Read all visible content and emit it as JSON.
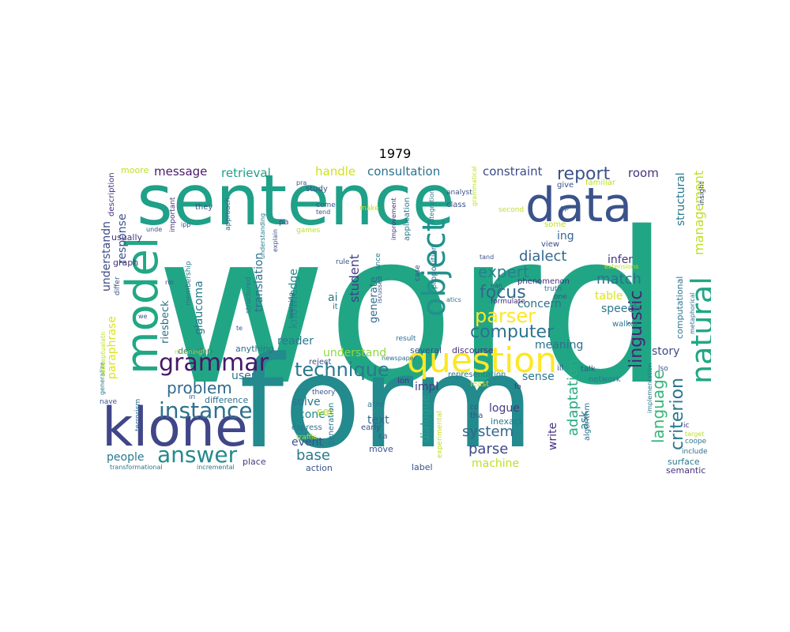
{
  "title": "1979",
  "words": [
    {
      "text": "word",
      "color": "#21a685"
    },
    {
      "text": "form",
      "color": "#238a8d"
    },
    {
      "text": "sentence",
      "color": "#1fa088"
    },
    {
      "text": "data",
      "color": "#3b528b"
    },
    {
      "text": "klone",
      "color": "#404688"
    },
    {
      "text": "model",
      "color": "#22a785"
    },
    {
      "text": "question",
      "color": "#fde725"
    },
    {
      "text": "object",
      "color": "#21918c"
    },
    {
      "text": "natural",
      "color": "#21a685"
    },
    {
      "text": "grammar",
      "color": "#481769"
    },
    {
      "text": "instance",
      "color": "#2c728e"
    },
    {
      "text": "answer",
      "color": "#238a8d"
    },
    {
      "text": "technique",
      "color": "#29798e"
    },
    {
      "text": "parser",
      "color": "#fde725"
    },
    {
      "text": "problem",
      "color": "#306a8e"
    },
    {
      "text": "focus",
      "color": "#31688e"
    },
    {
      "text": "computer",
      "color": "#2c738e"
    },
    {
      "text": "report",
      "color": "#3b528b"
    },
    {
      "text": "linguistic",
      "color": "#482475"
    },
    {
      "text": "language",
      "color": "#35b779"
    },
    {
      "text": "adaptation",
      "color": "#26ad81"
    },
    {
      "text": "criterion",
      "color": "#2a788e"
    },
    {
      "text": "management",
      "color": "#bddf26"
    },
    {
      "text": "expert",
      "color": "#26828e"
    },
    {
      "text": "dialect",
      "color": "#31688e"
    },
    {
      "text": "match",
      "color": "#2c728e"
    },
    {
      "text": "system",
      "color": "#31688e"
    },
    {
      "text": "parse",
      "color": "#3e4a89"
    },
    {
      "text": "student",
      "color": "#433e85"
    },
    {
      "text": "base",
      "color": "#2a788e"
    },
    {
      "text": "consultation",
      "color": "#2c728e"
    },
    {
      "text": "constraint",
      "color": "#3e4a89"
    },
    {
      "text": "message",
      "color": "#481a6c"
    },
    {
      "text": "retrieval",
      "color": "#1f9e89"
    },
    {
      "text": "handle",
      "color": "#d0e11c"
    },
    {
      "text": "room",
      "color": "#46327e"
    },
    {
      "text": "understand",
      "color": "#8fd744"
    },
    {
      "text": "dialogue",
      "color": "#1f9f88"
    },
    {
      "text": "logue",
      "color": "#443a83"
    },
    {
      "text": "translation",
      "color": "#2d708e"
    },
    {
      "text": "knowledge",
      "color": "#23898e"
    },
    {
      "text": "glaucoma",
      "color": "#2a788e"
    },
    {
      "text": "riesbeck",
      "color": "#2d708e"
    },
    {
      "text": "paraphrase",
      "color": "#dde318"
    },
    {
      "text": "response",
      "color": "#3b528b"
    },
    {
      "text": "understandn",
      "color": "#3e4a89"
    },
    {
      "text": "people",
      "color": "#29798e"
    },
    {
      "text": "text",
      "color": "#31688e"
    },
    {
      "text": "event",
      "color": "#3b528b"
    },
    {
      "text": "cone",
      "color": "#228c8d"
    },
    {
      "text": "set",
      "color": "#b5de2b"
    },
    {
      "text": "solve",
      "color": "#2a788e"
    },
    {
      "text": "impl",
      "color": "#443a83"
    },
    {
      "text": "machine",
      "color": "#bddf26"
    },
    {
      "text": "write",
      "color": "#472f7d"
    },
    {
      "text": "ask",
      "color": "#2a788e"
    },
    {
      "text": "sense",
      "color": "#2a788e"
    },
    {
      "text": "meaning",
      "color": "#2d708e"
    },
    {
      "text": "concern",
      "color": "#2d708e"
    },
    {
      "text": "table",
      "color": "#dde318"
    },
    {
      "text": "speech",
      "color": "#2a788e"
    },
    {
      "text": "infer",
      "color": "#453581"
    },
    {
      "text": "story",
      "color": "#3e4a89"
    },
    {
      "text": "structural",
      "color": "#2a788e"
    },
    {
      "text": "computational",
      "color": "#2c728e"
    },
    {
      "text": "reader",
      "color": "#2a788e"
    },
    {
      "text": "user",
      "color": "#29798e"
    },
    {
      "text": "ai",
      "color": "#2a788e"
    },
    {
      "text": "generate",
      "color": "#31688e"
    },
    {
      "text": "ing",
      "color": "#31688e"
    },
    {
      "text": "several",
      "color": "#3b528b"
    },
    {
      "text": "discourse",
      "color": "#472f7d"
    },
    {
      "text": "usually",
      "color": "#46327e"
    },
    {
      "text": "graph",
      "color": "#46327e"
    },
    {
      "text": "moore",
      "color": "#bddf26"
    },
    {
      "text": "description",
      "color": "#46327e"
    },
    {
      "text": "develop",
      "color": "#2a788e"
    },
    {
      "text": "anything",
      "color": "#2d708e"
    },
    {
      "text": "difference",
      "color": "#2d708e"
    },
    {
      "text": "place",
      "color": "#443a83"
    },
    {
      "text": "action",
      "color": "#3b528b"
    },
    {
      "text": "move",
      "color": "#3b528b"
    },
    {
      "text": "label",
      "color": "#3b528b"
    },
    {
      "text": "surface",
      "color": "#2a788e"
    },
    {
      "text": "semantic",
      "color": "#46327e"
    },
    {
      "text": "network",
      "color": "#2a788e"
    },
    {
      "text": "algorithm",
      "color": "#2c728e"
    },
    {
      "text": "talk",
      "color": "#3b528b"
    },
    {
      "text": "walker",
      "color": "#2a788e"
    },
    {
      "text": "include",
      "color": "#2d708e"
    },
    {
      "text": "coope",
      "color": "#2a788e"
    },
    {
      "text": "target",
      "color": "#bddf26"
    },
    {
      "text": "ic",
      "color": "#46327e"
    },
    {
      "text": "lso",
      "color": "#3b528b"
    },
    {
      "text": "insight",
      "color": "#3e4a89"
    },
    {
      "text": "metaphorical",
      "color": "#2d708e"
    },
    {
      "text": "give",
      "color": "#3b528b"
    },
    {
      "text": "familiar",
      "color": "#bddf26"
    },
    {
      "text": "second",
      "color": "#bddf26"
    },
    {
      "text": "some",
      "color": "#bddf26"
    },
    {
      "text": "view",
      "color": "#3e4a89"
    },
    {
      "text": "op",
      "color": "#2d708e"
    },
    {
      "text": "one",
      "color": "#3b528b"
    },
    {
      "text": "truth",
      "color": "#2d708e"
    },
    {
      "text": "phenomenon",
      "color": "#472f7d"
    },
    {
      "text": "formulate",
      "color": "#472f7d"
    },
    {
      "text": "nan",
      "color": "#3b528b"
    },
    {
      "text": "tand",
      "color": "#3b528b"
    },
    {
      "text": "extensions",
      "color": "#bddf26"
    },
    {
      "text": "proposition",
      "color": "#2a788e"
    },
    {
      "text": "application",
      "color": "#2a788e"
    },
    {
      "text": "improvement",
      "color": "#472f7d"
    },
    {
      "text": "integration",
      "color": "#2a788e"
    },
    {
      "text": "grammatical",
      "color": "#bddf26"
    },
    {
      "text": "class",
      "color": "#3b528b"
    },
    {
      "text": "analyst",
      "color": "#3b528b"
    },
    {
      "text": "case",
      "color": "#3e4a89"
    },
    {
      "text": "result",
      "color": "#2d708e"
    },
    {
      "text": "iscussed",
      "color": "#3b528b"
    },
    {
      "text": "ance",
      "color": "#2a788e"
    },
    {
      "text": "rule",
      "color": "#3b528b"
    },
    {
      "text": "it",
      "color": "#2a788e"
    },
    {
      "text": "newspaper",
      "color": "#2d708e"
    },
    {
      "text": "representation",
      "color": "#2a788e"
    },
    {
      "text": "least",
      "color": "#bddf26"
    },
    {
      "text": "tha",
      "color": "#3b528b"
    },
    {
      "text": "co",
      "color": "#3b528b"
    },
    {
      "text": "fo",
      "color": "#46327e"
    },
    {
      "text": "implementation",
      "color": "#2a788e"
    },
    {
      "text": "ill",
      "color": "#3b528b"
    },
    {
      "text": "atics",
      "color": "#2d708e"
    },
    {
      "text": "reject",
      "color": "#3e4a89"
    },
    {
      "text": "theory",
      "color": "#3b528b"
    },
    {
      "text": "ion",
      "color": "#46327e"
    },
    {
      "text": "atns",
      "color": "#2a788e"
    },
    {
      "text": "early",
      "color": "#3b528b"
    },
    {
      "text": "inexact",
      "color": "#2a788e"
    },
    {
      "text": "ca",
      "color": "#3b528b"
    },
    {
      "text": "experimental",
      "color": "#bddf26"
    },
    {
      "text": "express",
      "color": "#2a788e"
    },
    {
      "text": "generation",
      "color": "#2a788e"
    },
    {
      "text": "traffic",
      "color": "#bddf26"
    },
    {
      "text": "incremental",
      "color": "#2a788e"
    },
    {
      "text": "transformational",
      "color": "#2a788e"
    },
    {
      "text": "terrorism",
      "color": "#2d708e"
    },
    {
      "text": "nave",
      "color": "#3b528b"
    },
    {
      "text": "generalize",
      "color": "#2a788e"
    },
    {
      "text": "conceptualatn",
      "color": "#bddf26"
    },
    {
      "text": "differ",
      "color": "#3b528b"
    },
    {
      "text": "important",
      "color": "#46327e"
    },
    {
      "text": "membership",
      "color": "#2a788e"
    },
    {
      "text": "approach",
      "color": "#2d708e"
    },
    {
      "text": "they",
      "color": "#3b528b"
    },
    {
      "text": "study",
      "color": "#3b528b"
    },
    {
      "text": "come",
      "color": "#3b528b"
    },
    {
      "text": "tend",
      "color": "#3b528b"
    },
    {
      "text": "make",
      "color": "#bddf26"
    },
    {
      "text": "games",
      "color": "#bddf26"
    },
    {
      "text": "pa",
      "color": "#3b528b"
    },
    {
      "text": "pra",
      "color": "#3b528b"
    },
    {
      "text": "understanding",
      "color": "#2a788e"
    },
    {
      "text": "explain",
      "color": "#3b528b"
    },
    {
      "text": "unde",
      "color": "#3b528b"
    },
    {
      "text": "ipp",
      "color": "#3b528b"
    },
    {
      "text": "in",
      "color": "#3b528b"
    },
    {
      "text": "we",
      "color": "#3b528b"
    },
    {
      "text": "te",
      "color": "#3b528b"
    },
    {
      "text": "learning",
      "color": "#3b528b"
    },
    {
      "text": "structured",
      "color": "#2a788e"
    },
    {
      "text": "meaningful",
      "color": "#bddf26"
    },
    {
      "text": "rm",
      "color": "#3b528b"
    }
  ]
}
